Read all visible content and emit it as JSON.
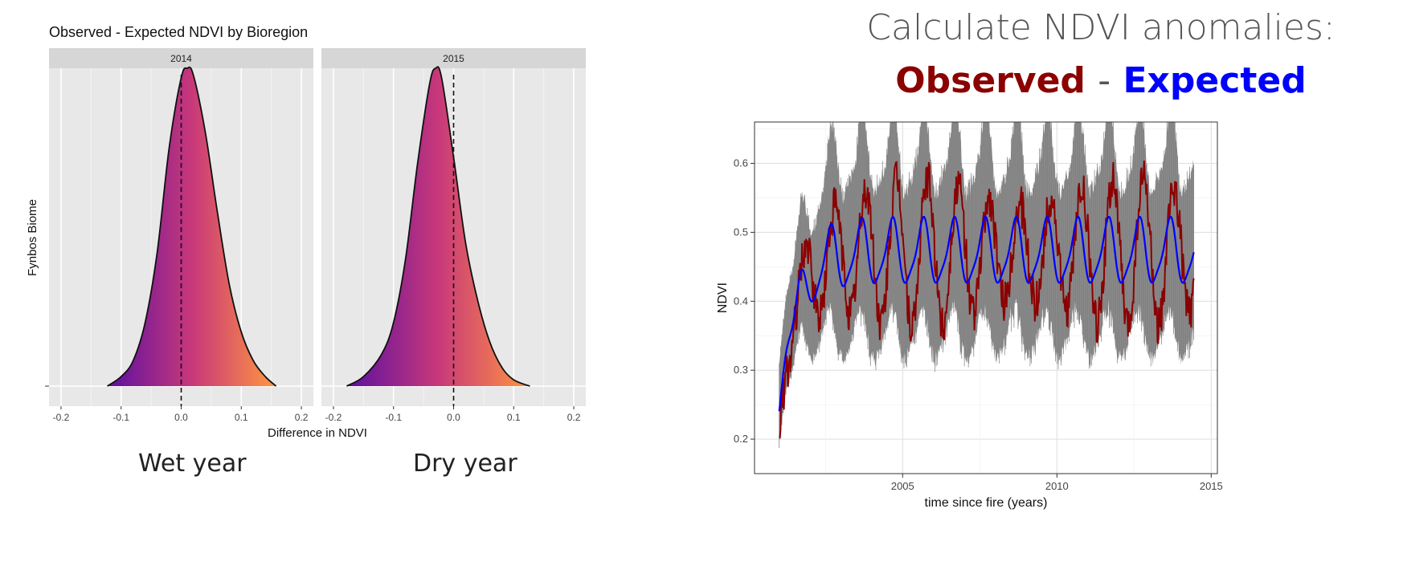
{
  "heading": {
    "line1": "Calculate NDVI anomalies:",
    "observed": "Observed",
    "separator": "-",
    "expected": "Expected"
  },
  "captions": {
    "left": "Wet year",
    "right": "Dry year"
  },
  "colors": {
    "observed": "#8b0000",
    "expected": "#0000ff",
    "band": "#8c8c8c",
    "density_low": "#5a10a0",
    "density_mid": "#c8387a",
    "density_high": "#ff9640",
    "panel_bg": "#e8e8e8",
    "strip_bg": "#d6d6d6"
  },
  "chart_data": [
    {
      "type": "area",
      "title": "Observed - Expected NDVI by Bioregion",
      "xlabel": "Difference in NDVI",
      "ylabel": "Fynbos Biome",
      "xlim": [
        -0.22,
        0.22
      ],
      "xticks": [
        "-0.2",
        "-0.1",
        "0.0",
        "0.1",
        "0.2"
      ],
      "reference_line_x": 0.0,
      "panels": [
        {
          "name": "2014",
          "x": [
            -0.123,
            -0.1,
            -0.08,
            -0.06,
            -0.04,
            -0.02,
            0.0,
            0.01,
            0.02,
            0.04,
            0.06,
            0.08,
            0.1,
            0.12,
            0.14,
            0.158
          ],
          "y": [
            0.0,
            0.03,
            0.08,
            0.2,
            0.42,
            0.75,
            0.97,
            1.0,
            0.98,
            0.8,
            0.55,
            0.32,
            0.17,
            0.08,
            0.03,
            0.0
          ]
        },
        {
          "name": "2015",
          "x": [
            -0.178,
            -0.15,
            -0.12,
            -0.1,
            -0.08,
            -0.06,
            -0.04,
            -0.03,
            -0.02,
            0.0,
            0.02,
            0.04,
            0.06,
            0.08,
            0.1,
            0.127
          ],
          "y": [
            0.0,
            0.03,
            0.1,
            0.2,
            0.4,
            0.7,
            0.95,
            1.0,
            0.97,
            0.72,
            0.45,
            0.27,
            0.14,
            0.06,
            0.02,
            0.0
          ]
        }
      ]
    },
    {
      "type": "line",
      "xlabel": "time since fire (years)",
      "ylabel": "NDVI",
      "xlim": [
        2000.2,
        2015.2
      ],
      "ylim": [
        0.15,
        0.66
      ],
      "xticks": [
        "2005",
        "2010",
        "2015"
      ],
      "yticks": [
        "0.2",
        "0.3",
        "0.4",
        "0.5",
        "0.6"
      ],
      "series": [
        {
          "name": "Observed",
          "color": "#8b0000"
        },
        {
          "name": "Expected",
          "color": "#0000ff"
        }
      ],
      "band_color": "#8c8c8c"
    }
  ]
}
